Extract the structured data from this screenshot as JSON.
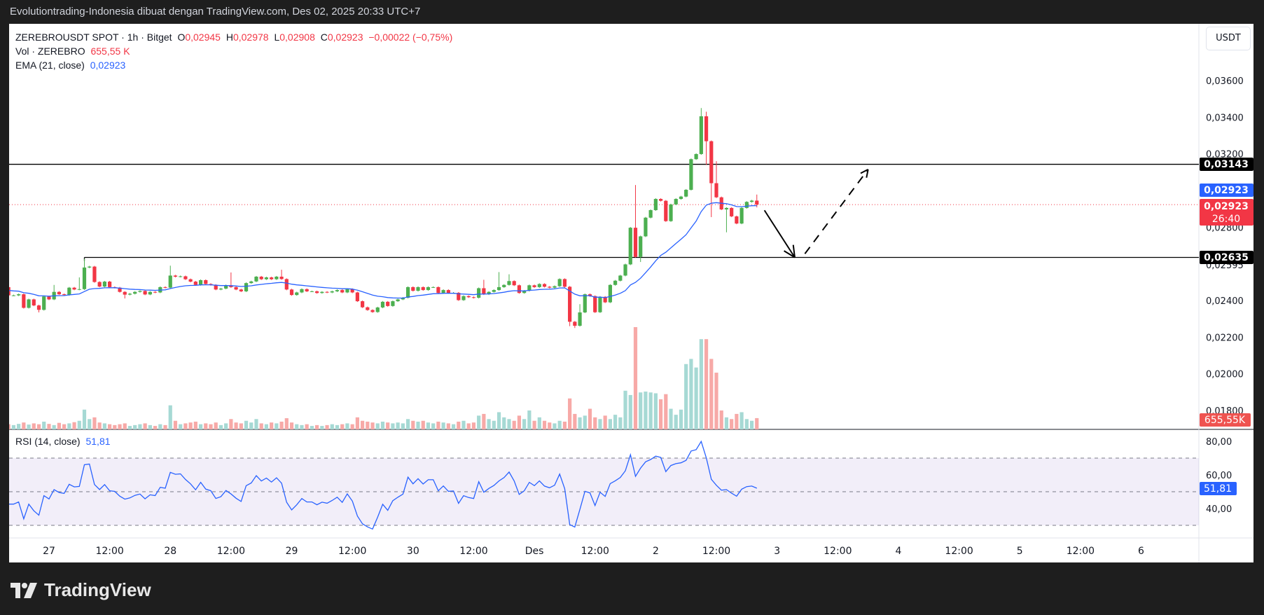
{
  "header": {
    "title": "Evolutiontrading-Indonesia dibuat dengan TradingView.com, Des 02, 2025 20:33 UTC+7"
  },
  "legend": {
    "symbol": "ZEREBROUSDT SPOT · 1h · Bitget",
    "o_label": "O",
    "o": "0,02945",
    "h_label": "H",
    "h": "0,02978",
    "l_label": "L",
    "l": "0,02908",
    "c_label": "C",
    "c": "0,02923",
    "change": "−0,00022 (−0,75%)",
    "vol_label": "Vol · ZEREBRO",
    "vol": "655,55 K",
    "ema_label": "EMA (21, close)",
    "ema": "0,02923",
    "rsi_label": "RSI (14, close)",
    "rsi": "51,81"
  },
  "axis": {
    "currency": "USDT",
    "price_ticks": [
      {
        "v": 0.036,
        "t": "0,03600"
      },
      {
        "v": 0.034,
        "t": "0,03400"
      },
      {
        "v": 0.032,
        "t": "0,03200"
      },
      {
        "v": 0.028,
        "t": "0,02800"
      },
      {
        "v": 0.02595,
        "t": "0,02595"
      },
      {
        "v": 0.024,
        "t": "0,02400"
      },
      {
        "v": 0.022,
        "t": "0,02200"
      },
      {
        "v": 0.02,
        "t": "0,02000"
      },
      {
        "v": 0.018,
        "t": "0,01800"
      }
    ],
    "rsi_ticks": [
      {
        "v": 80,
        "t": "80,00"
      },
      {
        "v": 60,
        "t": "60,00"
      },
      {
        "v": 40,
        "t": "40,00"
      }
    ],
    "time_labels": [
      {
        "t": "27",
        "hour": 0
      },
      {
        "t": "12:00",
        "hour": 12
      },
      {
        "t": "28",
        "hour": 24
      },
      {
        "t": "12:00",
        "hour": 36
      },
      {
        "t": "29",
        "hour": 48
      },
      {
        "t": "12:00",
        "hour": 60
      },
      {
        "t": "30",
        "hour": 72
      },
      {
        "t": "12:00",
        "hour": 84
      },
      {
        "t": "Des",
        "hour": 96
      },
      {
        "t": "12:00",
        "hour": 108
      },
      {
        "t": "2",
        "hour": 120
      },
      {
        "t": "12:00",
        "hour": 132
      },
      {
        "t": "3",
        "hour": 144
      },
      {
        "t": "12:00",
        "hour": 156
      },
      {
        "t": "4",
        "hour": 168
      },
      {
        "t": "12:00",
        "hour": 180
      },
      {
        "t": "5",
        "hour": 192
      },
      {
        "t": "12:00",
        "hour": 204
      },
      {
        "t": "6",
        "hour": 216
      }
    ],
    "badges": {
      "resistance": "0,03143",
      "ema": "0,02923",
      "price": "0,02923",
      "countdown": "26:40",
      "support": "0,02635",
      "volume": "655,55K",
      "rsi": "51,81"
    }
  },
  "colors": {
    "up": "#4caf50",
    "down": "#f23645",
    "ema": "#2962ff",
    "rsi": "#2962ff",
    "vol_up": "#a6d9d4",
    "vol_down": "#f7a9a7",
    "badge_dark": "#000000",
    "badge_blue": "#2962ff",
    "badge_red": "#f23645"
  },
  "chart_data": {
    "type": "candlestick",
    "interval": "1h",
    "first_open": 0.02473,
    "last_candle_hour": 140,
    "close": [
      0.02428,
      0.02428,
      0.02434,
      0.0236,
      0.02406,
      0.02373,
      0.02349,
      0.02422,
      0.02406,
      0.02447,
      0.02434,
      0.0243,
      0.0247,
      0.0246,
      0.02462,
      0.0258,
      0.02585,
      0.02501,
      0.02476,
      0.02503,
      0.02473,
      0.0247,
      0.02447,
      0.02432,
      0.02437,
      0.02447,
      0.02452,
      0.02433,
      0.02447,
      0.02444,
      0.02473,
      0.0247,
      0.02536,
      0.0253,
      0.02532,
      0.02516,
      0.02503,
      0.02485,
      0.02511,
      0.0249,
      0.02485,
      0.0246,
      0.02465,
      0.02483,
      0.02473,
      0.0246,
      0.0245,
      0.02495,
      0.02504,
      0.0253,
      0.02516,
      0.02526,
      0.02516,
      0.0253,
      0.02517,
      0.0246,
      0.0243,
      0.02444,
      0.02462,
      0.0245,
      0.0245,
      0.02441,
      0.02447,
      0.02444,
      0.0245,
      0.02457,
      0.02444,
      0.02462,
      0.02444,
      0.02396,
      0.02363,
      0.02348,
      0.02337,
      0.02362,
      0.02393,
      0.0237,
      0.02396,
      0.02406,
      0.02415,
      0.02473,
      0.02453,
      0.02473,
      0.02457,
      0.02473,
      0.02473,
      0.02441,
      0.02457,
      0.02441,
      0.02442,
      0.02402,
      0.02424,
      0.02418,
      0.02415,
      0.02467,
      0.02434,
      0.02447,
      0.02457,
      0.02473,
      0.02485,
      0.02506,
      0.02483,
      0.02441,
      0.02453,
      0.02483,
      0.02473,
      0.0249,
      0.02475,
      0.0247,
      0.02478,
      0.02517,
      0.02475,
      0.02284,
      0.02262,
      0.02335,
      0.02434,
      0.02424,
      0.02336,
      0.0242,
      0.0239,
      0.02485,
      0.02508,
      0.02536,
      0.02597,
      0.02797,
      0.02638,
      0.0275,
      0.02852,
      0.02893,
      0.02954,
      0.02944,
      0.02833,
      0.02924,
      0.02954,
      0.02967,
      0.03004,
      0.03171,
      0.03199,
      0.03405,
      0.03269,
      0.0304,
      0.02963,
      0.02897,
      0.02905,
      0.02859,
      0.0282,
      0.02905,
      0.02938,
      0.02945,
      0.02923
    ],
    "wicks": {
      "6": [
        null,
        0.02335
      ],
      "9": [
        0.02485,
        null
      ],
      "14": [
        0.02526,
        null
      ],
      "15": [
        0.02628,
        null
      ],
      "23": [
        null,
        0.02411
      ],
      "32": [
        0.0259,
        null
      ],
      "44": [
        0.02553,
        null
      ],
      "54": [
        0.02568,
        null
      ],
      "94": [
        0.02513,
        null
      ],
      "97": [
        0.02555,
        null
      ],
      "99": [
        0.02543,
        null
      ],
      "111": [
        null,
        0.0226
      ],
      "112": [
        null,
        0.0225
      ],
      "113": [
        0.0238,
        null
      ],
      "124": [
        0.0303,
        null
      ],
      "125": [
        null,
        0.0261
      ],
      "137": [
        0.0345,
        null
      ],
      "138": [
        0.0343,
        0.0314
      ],
      "139": [
        null,
        0.02855
      ],
      "140": [
        0.0316,
        null
      ],
      "142": [
        null,
        0.02772
      ],
      "148": [
        0.02978,
        0.02908
      ]
    },
    "volume_k": [
      300,
      250,
      320,
      400,
      280,
      350,
      300,
      450,
      320,
      250,
      380,
      300,
      350,
      420,
      500,
      1150,
      600,
      700,
      400,
      350,
      300,
      250,
      300,
      350,
      200,
      250,
      300,
      350,
      250,
      200,
      300,
      250,
      1400,
      500,
      300,
      350,
      400,
      450,
      300,
      350,
      300,
      400,
      250,
      350,
      600,
      400,
      350,
      500,
      400,
      600,
      350,
      300,
      400,
      350,
      450,
      650,
      400,
      300,
      250,
      300,
      200,
      250,
      200,
      250,
      300,
      250,
      300,
      350,
      300,
      700,
      500,
      450,
      400,
      350,
      450,
      400,
      350,
      400,
      350,
      600,
      500,
      450,
      500,
      400,
      350,
      450,
      400,
      350,
      300,
      450,
      500,
      350,
      400,
      800,
      900,
      600,
      500,
      1000,
      700,
      600,
      500,
      800,
      600,
      1100,
      500,
      700,
      500,
      400,
      350,
      500,
      450,
      1800,
      900,
      700,
      800,
      1200,
      700,
      600,
      800,
      600,
      850,
      700,
      2250,
      2000,
      5950,
      2150,
      2200,
      2150,
      2100,
      1750,
      2050,
      1200,
      850,
      1150,
      3800,
      4100,
      3600,
      5250,
      5250,
      4100,
      3300,
      1100,
      700,
      600,
      900,
      1000,
      600,
      500,
      655.55
    ],
    "ema_period": 21,
    "rsi_period": 14,
    "levels": {
      "resistance": 0.03143,
      "support": 0.02635,
      "current": 0.02923
    },
    "rsi_bands": [
      70,
      50,
      30
    ],
    "projection": [
      {
        "from": {
          "hour": 141.5,
          "price": 0.02892
        },
        "to": {
          "hour": 147.5,
          "price": 0.02635
        },
        "style": "solid"
      },
      {
        "from": {
          "hour": 149.5,
          "price": 0.02655
        },
        "to": {
          "hour": 162,
          "price": 0.03115
        },
        "style": "dashed"
      }
    ]
  },
  "footer": {
    "brand": "TradingView"
  }
}
